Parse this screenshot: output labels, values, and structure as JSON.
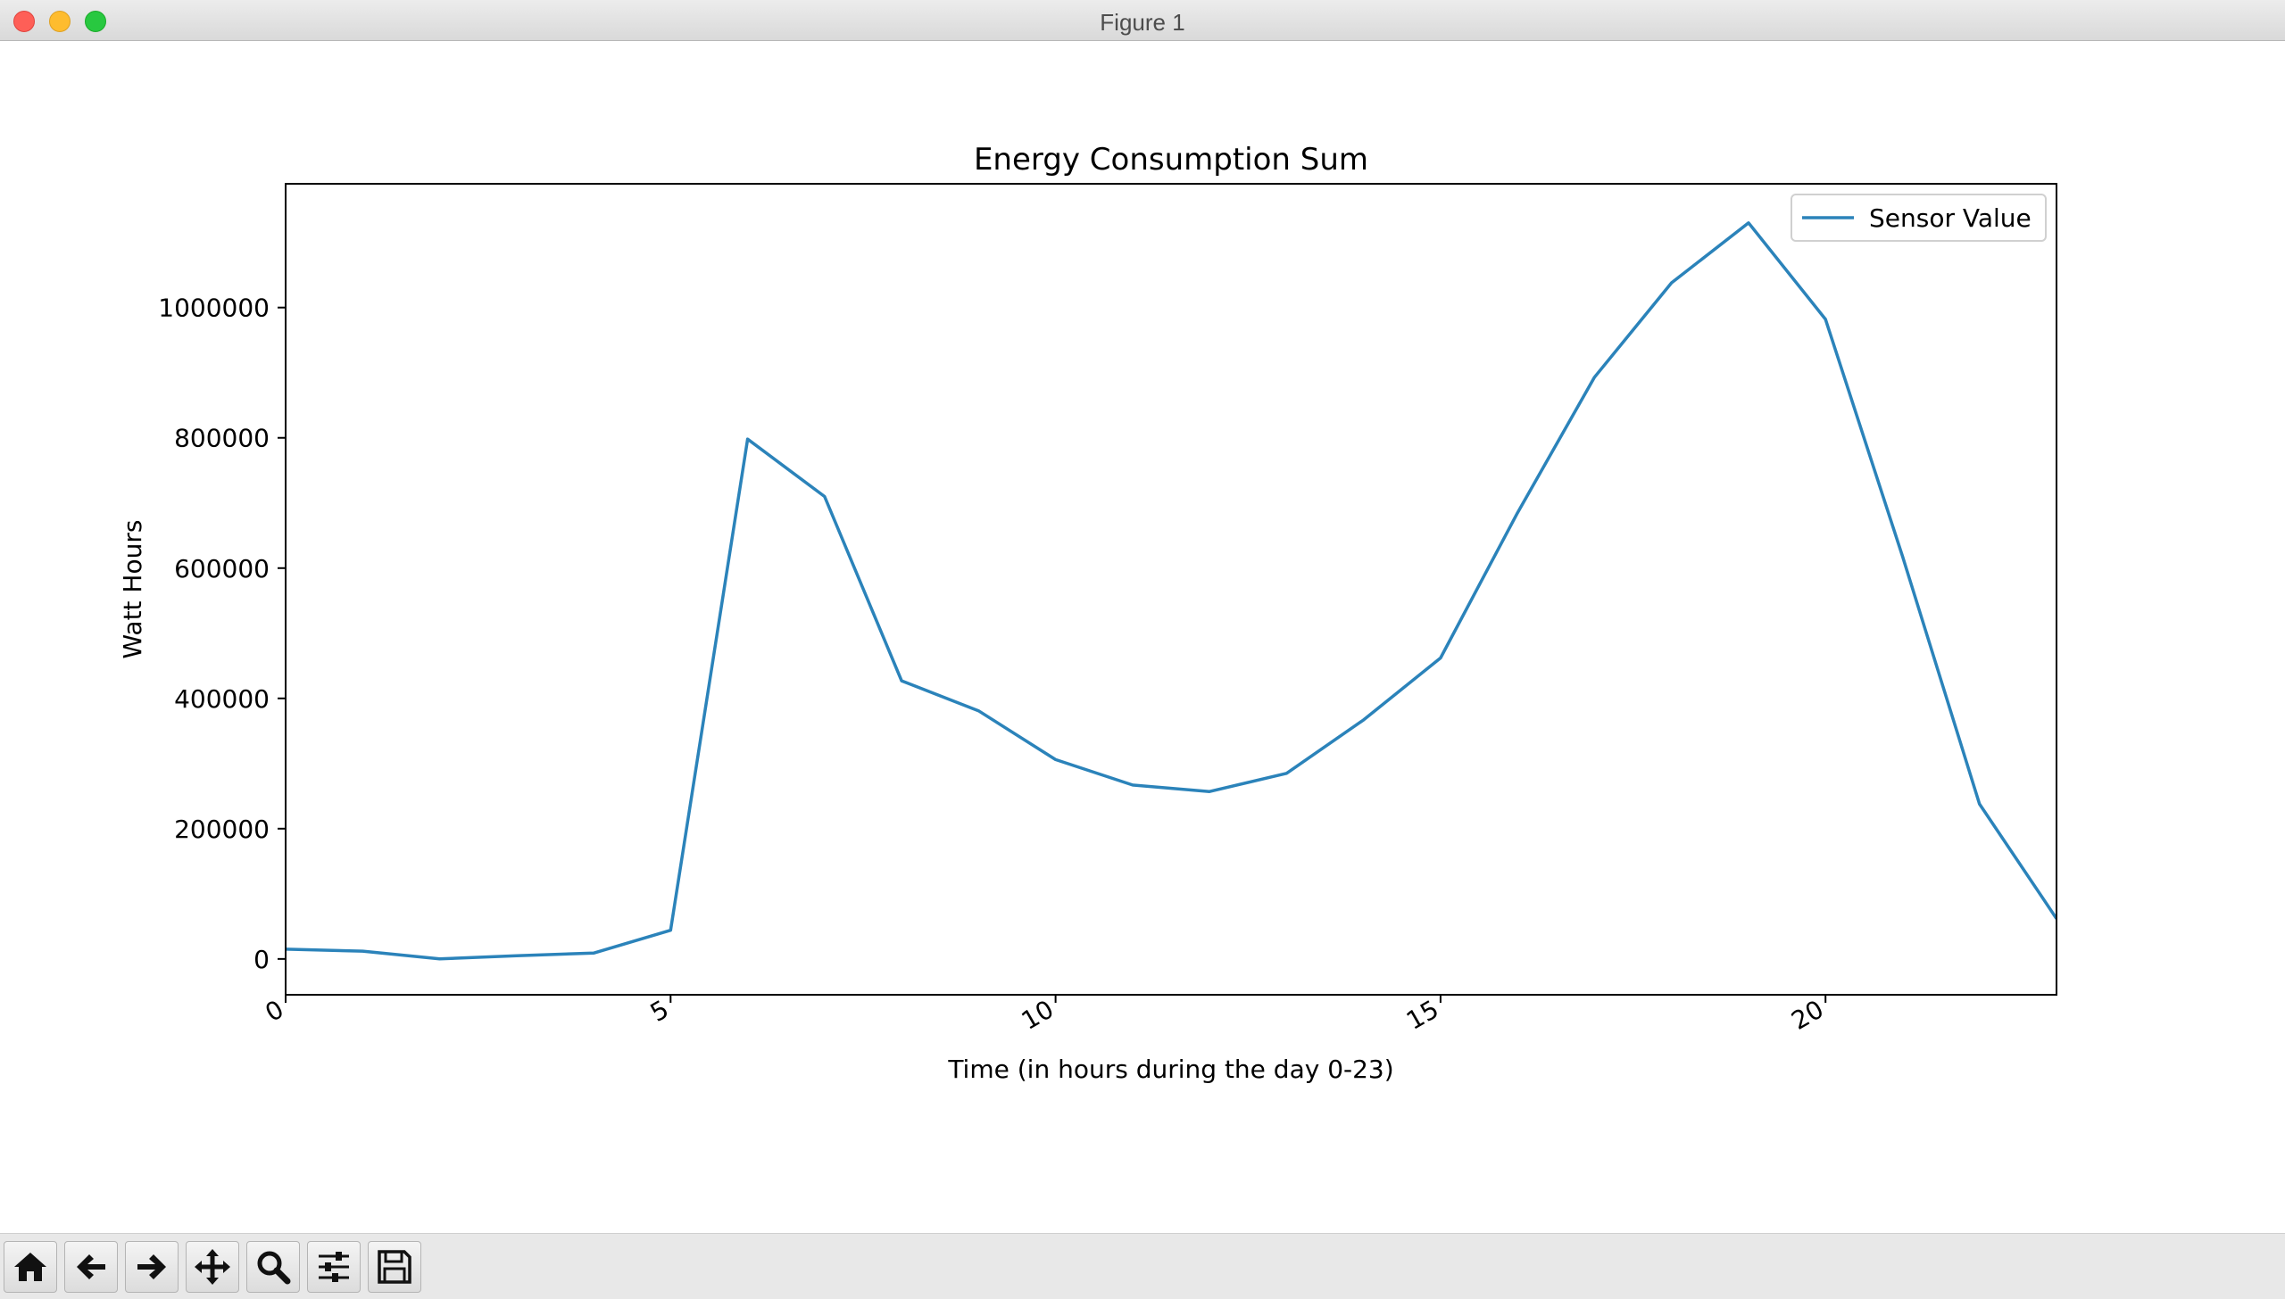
{
  "window": {
    "title": "Figure 1"
  },
  "toolbar": {
    "buttons": [
      {
        "icon": "home-icon"
      },
      {
        "icon": "arrow-left-icon"
      },
      {
        "icon": "arrow-right-icon"
      },
      {
        "icon": "move-icon"
      },
      {
        "icon": "zoom-icon"
      },
      {
        "icon": "sliders-icon"
      },
      {
        "icon": "save-icon"
      }
    ]
  },
  "chart_data": {
    "type": "line",
    "title": "Energy Consumption Sum",
    "xlabel": "Time (in hours during the day 0-23)",
    "ylabel": "Watt Hours",
    "xlim": [
      0,
      23
    ],
    "ylim": [
      -55000,
      1190000
    ],
    "x_ticks": [
      0,
      5,
      10,
      15,
      20
    ],
    "x_tick_labels": [
      "0",
      "5",
      "10",
      "15",
      "20"
    ],
    "y_ticks": [
      0,
      200000,
      400000,
      600000,
      800000,
      1000000
    ],
    "y_tick_labels": [
      "0",
      "200000",
      "400000",
      "600000",
      "800000",
      "1000000"
    ],
    "grid": false,
    "legend_position": "top-right",
    "color": "#2b83ba",
    "series": [
      {
        "name": "Sensor Value",
        "x": [
          0,
          1,
          2,
          3,
          4,
          5,
          6,
          7,
          8,
          9,
          10,
          11,
          12,
          13,
          14,
          15,
          16,
          17,
          18,
          19,
          20,
          21,
          22,
          23
        ],
        "y": [
          15000,
          12000,
          0,
          5000,
          9000,
          44000,
          798000,
          710000,
          427000,
          381000,
          306000,
          267000,
          257000,
          285000,
          367000,
          462000,
          685000,
          893000,
          1038000,
          1130000,
          982000,
          618000,
          238000,
          62000
        ]
      }
    ]
  }
}
